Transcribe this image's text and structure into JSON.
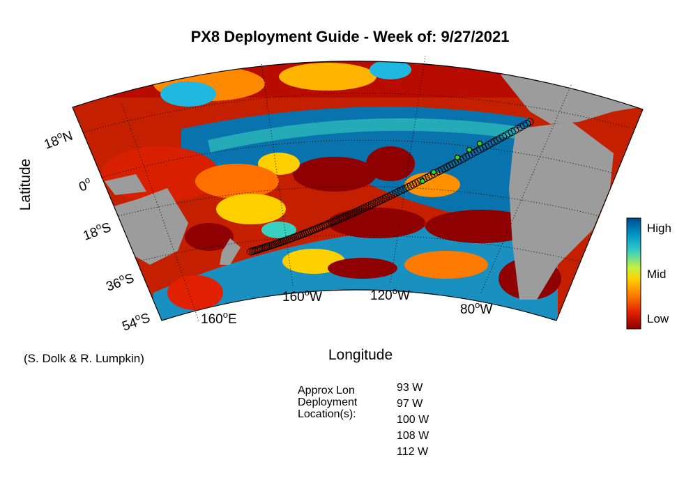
{
  "title": "PX8 Deployment Guide - Week of: 9/27/2021",
  "axes": {
    "ylabel": "Latitude",
    "xlabel": "Longitude",
    "lat_ticks": [
      {
        "deg": "18",
        "hem": "N"
      },
      {
        "deg": "0",
        "hem": ""
      },
      {
        "deg": "18",
        "hem": "S"
      },
      {
        "deg": "36",
        "hem": "S"
      },
      {
        "deg": "54",
        "hem": "S"
      }
    ],
    "lon_ticks": [
      {
        "deg": "160",
        "hem": "E"
      },
      {
        "deg": "160",
        "hem": "W"
      },
      {
        "deg": "120",
        "hem": "W"
      },
      {
        "deg": "80",
        "hem": "W"
      }
    ]
  },
  "colorbar": {
    "labels": [
      "High",
      "Mid",
      "Low"
    ],
    "colors": [
      "#004a8c",
      "#0095c8",
      "#38d0c0",
      "#c8f040",
      "#ffd000",
      "#ff7a00",
      "#e02000",
      "#8a0000"
    ]
  },
  "colors": {
    "land": "#9c9c9c",
    "ocean_high": "#0873ac",
    "ocean_low": "#8f0000",
    "track_point": "#000000",
    "deployment_point": "#22e02a"
  },
  "credit": "(S. Dolk & R. Lumpkin)",
  "deployment": {
    "label_lines": [
      "Approx Lon",
      "Deployment",
      "Location(s):"
    ],
    "locations": [
      "93 W",
      "97 W",
      "100 W",
      "108 W",
      "112 W"
    ]
  }
}
